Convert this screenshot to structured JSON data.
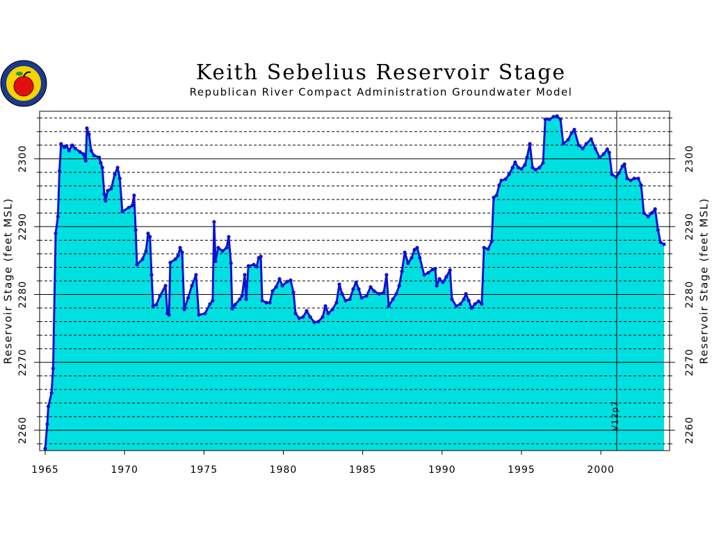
{
  "chart_data": {
    "type": "area_line",
    "title": "Keith Sebelius Reservoir Stage",
    "subtitle": "Republican River Compact Administration Groundwater Model",
    "ylabel": "Reservoir Stage (feet MSL)",
    "y2label": "Reservoir Stage (feet MSL)",
    "xlim": [
      1964.65,
      2004.33
    ],
    "ylim": [
      2257,
      2307
    ],
    "xticks": [
      1965,
      1970,
      1975,
      1980,
      1985,
      1990,
      1995,
      2000
    ],
    "yticks": [
      2260,
      2270,
      2280,
      2290,
      2300
    ],
    "y2ticks": [
      2260,
      2270,
      2280,
      2290,
      2300
    ],
    "minor_yticks": [
      2258,
      2262,
      2264,
      2266,
      2268,
      2272,
      2274,
      2276,
      2278,
      2282,
      2284,
      2286,
      2288,
      2292,
      2294,
      2296,
      2298,
      2302,
      2304,
      2306
    ],
    "grid": true,
    "vline": {
      "x": 2001.0,
      "label": "V12p7"
    },
    "series": [
      {
        "line_color": "#1010d0",
        "fill_color": "#00e0e0",
        "x": [
          1965.0,
          1965.13,
          1965.2,
          1965.4,
          1965.5,
          1965.66,
          1965.8,
          1965.9,
          1966.0,
          1966.2,
          1966.35,
          1966.5,
          1966.7,
          1966.9,
          1967.2,
          1967.4,
          1967.55,
          1967.63,
          1967.76,
          1967.9,
          1968.07,
          1968.4,
          1968.5,
          1968.6,
          1968.72,
          1968.8,
          1968.94,
          1969.16,
          1969.38,
          1969.56,
          1969.7,
          1969.86,
          1970.26,
          1970.48,
          1970.6,
          1970.7,
          1970.78,
          1971.13,
          1971.35,
          1971.48,
          1971.6,
          1971.7,
          1971.8,
          1972.0,
          1972.23,
          1972.58,
          1972.7,
          1972.8,
          1972.88,
          1973.2,
          1973.37,
          1973.5,
          1973.63,
          1973.76,
          1974.0,
          1974.24,
          1974.5,
          1974.68,
          1975.07,
          1975.38,
          1975.55,
          1975.64,
          1975.73,
          1975.9,
          1976.17,
          1976.43,
          1976.56,
          1976.7,
          1976.78,
          1976.96,
          1977.26,
          1977.4,
          1977.57,
          1977.66,
          1977.8,
          1978.14,
          1978.32,
          1978.45,
          1978.58,
          1978.67,
          1978.93,
          1979.15,
          1979.32,
          1979.54,
          1979.76,
          1979.94,
          1980.24,
          1980.46,
          1980.64,
          1980.77,
          1981.0,
          1981.25,
          1981.47,
          1981.69,
          1981.95,
          1982.21,
          1982.48,
          1982.65,
          1982.83,
          1983.09,
          1983.35,
          1983.53,
          1983.7,
          1983.92,
          1984.19,
          1984.4,
          1984.58,
          1984.75,
          1984.93,
          1985.24,
          1985.5,
          1985.72,
          1986.03,
          1986.33,
          1986.5,
          1986.64,
          1986.9,
          1987.12,
          1987.3,
          1987.47,
          1987.65,
          1987.86,
          1988.08,
          1988.26,
          1988.43,
          1988.6,
          1988.87,
          1989.13,
          1989.4,
          1989.57,
          1989.66,
          1989.84,
          1990.05,
          1990.27,
          1990.5,
          1990.62,
          1990.89,
          1991.15,
          1991.37,
          1991.5,
          1991.68,
          1991.85,
          1992.07,
          1992.3,
          1992.5,
          1992.64,
          1992.9,
          1993.12,
          1993.25,
          1993.43,
          1993.6,
          1993.73,
          1994.0,
          1994.22,
          1994.44,
          1994.6,
          1994.8,
          1995.0,
          1995.22,
          1995.35,
          1995.53,
          1995.7,
          1995.88,
          1996.14,
          1996.36,
          1996.5,
          1996.76,
          1997.02,
          1997.24,
          1997.46,
          1997.63,
          1997.94,
          1998.16,
          1998.33,
          1998.6,
          1998.86,
          1999.08,
          1999.39,
          1999.65,
          1999.92,
          2000.18,
          2000.4,
          2000.53,
          2000.7,
          2000.96,
          2001.14,
          2001.36,
          2001.49,
          2001.66,
          2001.88,
          2002.1,
          2002.36,
          2002.54,
          2002.71,
          2002.98,
          2003.2,
          2003.42,
          2003.6,
          2003.76,
          2003.98
        ],
        "values": [
          2257.3,
          2260.9,
          2263.5,
          2265.5,
          2269.1,
          2289.0,
          2291.5,
          2298.2,
          2302.2,
          2301.7,
          2301.9,
          2301.2,
          2302.0,
          2301.5,
          2301.0,
          2300.7,
          2299.7,
          2304.5,
          2303.6,
          2301.2,
          2300.5,
          2300.2,
          2299.4,
          2298.7,
          2294.8,
          2293.8,
          2295.3,
          2295.6,
          2297.7,
          2298.7,
          2297.1,
          2292.2,
          2292.8,
          2293.1,
          2294.6,
          2289.5,
          2284.4,
          2285.2,
          2286.4,
          2289.0,
          2288.5,
          2282.9,
          2278.3,
          2278.5,
          2279.8,
          2281.3,
          2277.2,
          2277.0,
          2284.7,
          2285.2,
          2285.7,
          2286.9,
          2286.2,
          2277.8,
          2279.5,
          2281.3,
          2282.9,
          2277.0,
          2277.2,
          2278.6,
          2279.1,
          2290.7,
          2284.9,
          2286.9,
          2286.4,
          2286.9,
          2288.5,
          2284.6,
          2277.9,
          2278.5,
          2279.3,
          2279.8,
          2282.9,
          2279.3,
          2284.2,
          2284.4,
          2284.1,
          2285.4,
          2285.6,
          2279.1,
          2278.8,
          2278.8,
          2280.5,
          2281.1,
          2282.3,
          2281.3,
          2281.9,
          2282.1,
          2280.3,
          2277.2,
          2276.5,
          2276.7,
          2277.6,
          2276.7,
          2275.9,
          2276.0,
          2276.7,
          2278.3,
          2277.2,
          2277.8,
          2278.8,
          2281.5,
          2280.1,
          2279.1,
          2279.3,
          2280.8,
          2281.8,
          2280.8,
          2279.5,
          2279.8,
          2281.1,
          2280.5,
          2280.1,
          2280.3,
          2282.9,
          2278.3,
          2279.3,
          2280.1,
          2281.3,
          2283.4,
          2286.2,
          2284.6,
          2285.4,
          2286.6,
          2286.9,
          2285.4,
          2282.9,
          2283.2,
          2283.7,
          2283.8,
          2281.3,
          2282.3,
          2281.8,
          2282.6,
          2283.6,
          2279.3,
          2278.3,
          2278.6,
          2279.3,
          2280.1,
          2279.1,
          2278.0,
          2278.6,
          2279.0,
          2278.6,
          2286.9,
          2286.7,
          2287.8,
          2294.3,
          2294.6,
          2296.1,
          2296.8,
          2297.0,
          2297.7,
          2298.7,
          2299.5,
          2298.7,
          2298.5,
          2299.1,
          2300.2,
          2302.2,
          2298.7,
          2298.4,
          2298.7,
          2299.4,
          2305.8,
          2305.8,
          2306.2,
          2306.3,
          2305.8,
          2302.2,
          2302.8,
          2303.8,
          2304.3,
          2302.0,
          2301.5,
          2302.2,
          2302.9,
          2301.5,
          2300.2,
          2300.7,
          2301.4,
          2300.9,
          2297.7,
          2297.3,
          2297.9,
          2298.9,
          2299.2,
          2297.1,
          2296.8,
          2297.1,
          2297.1,
          2296.1,
          2292.0,
          2291.5,
          2292.0,
          2292.6,
          2289.5,
          2287.7,
          2287.4
        ]
      }
    ]
  }
}
